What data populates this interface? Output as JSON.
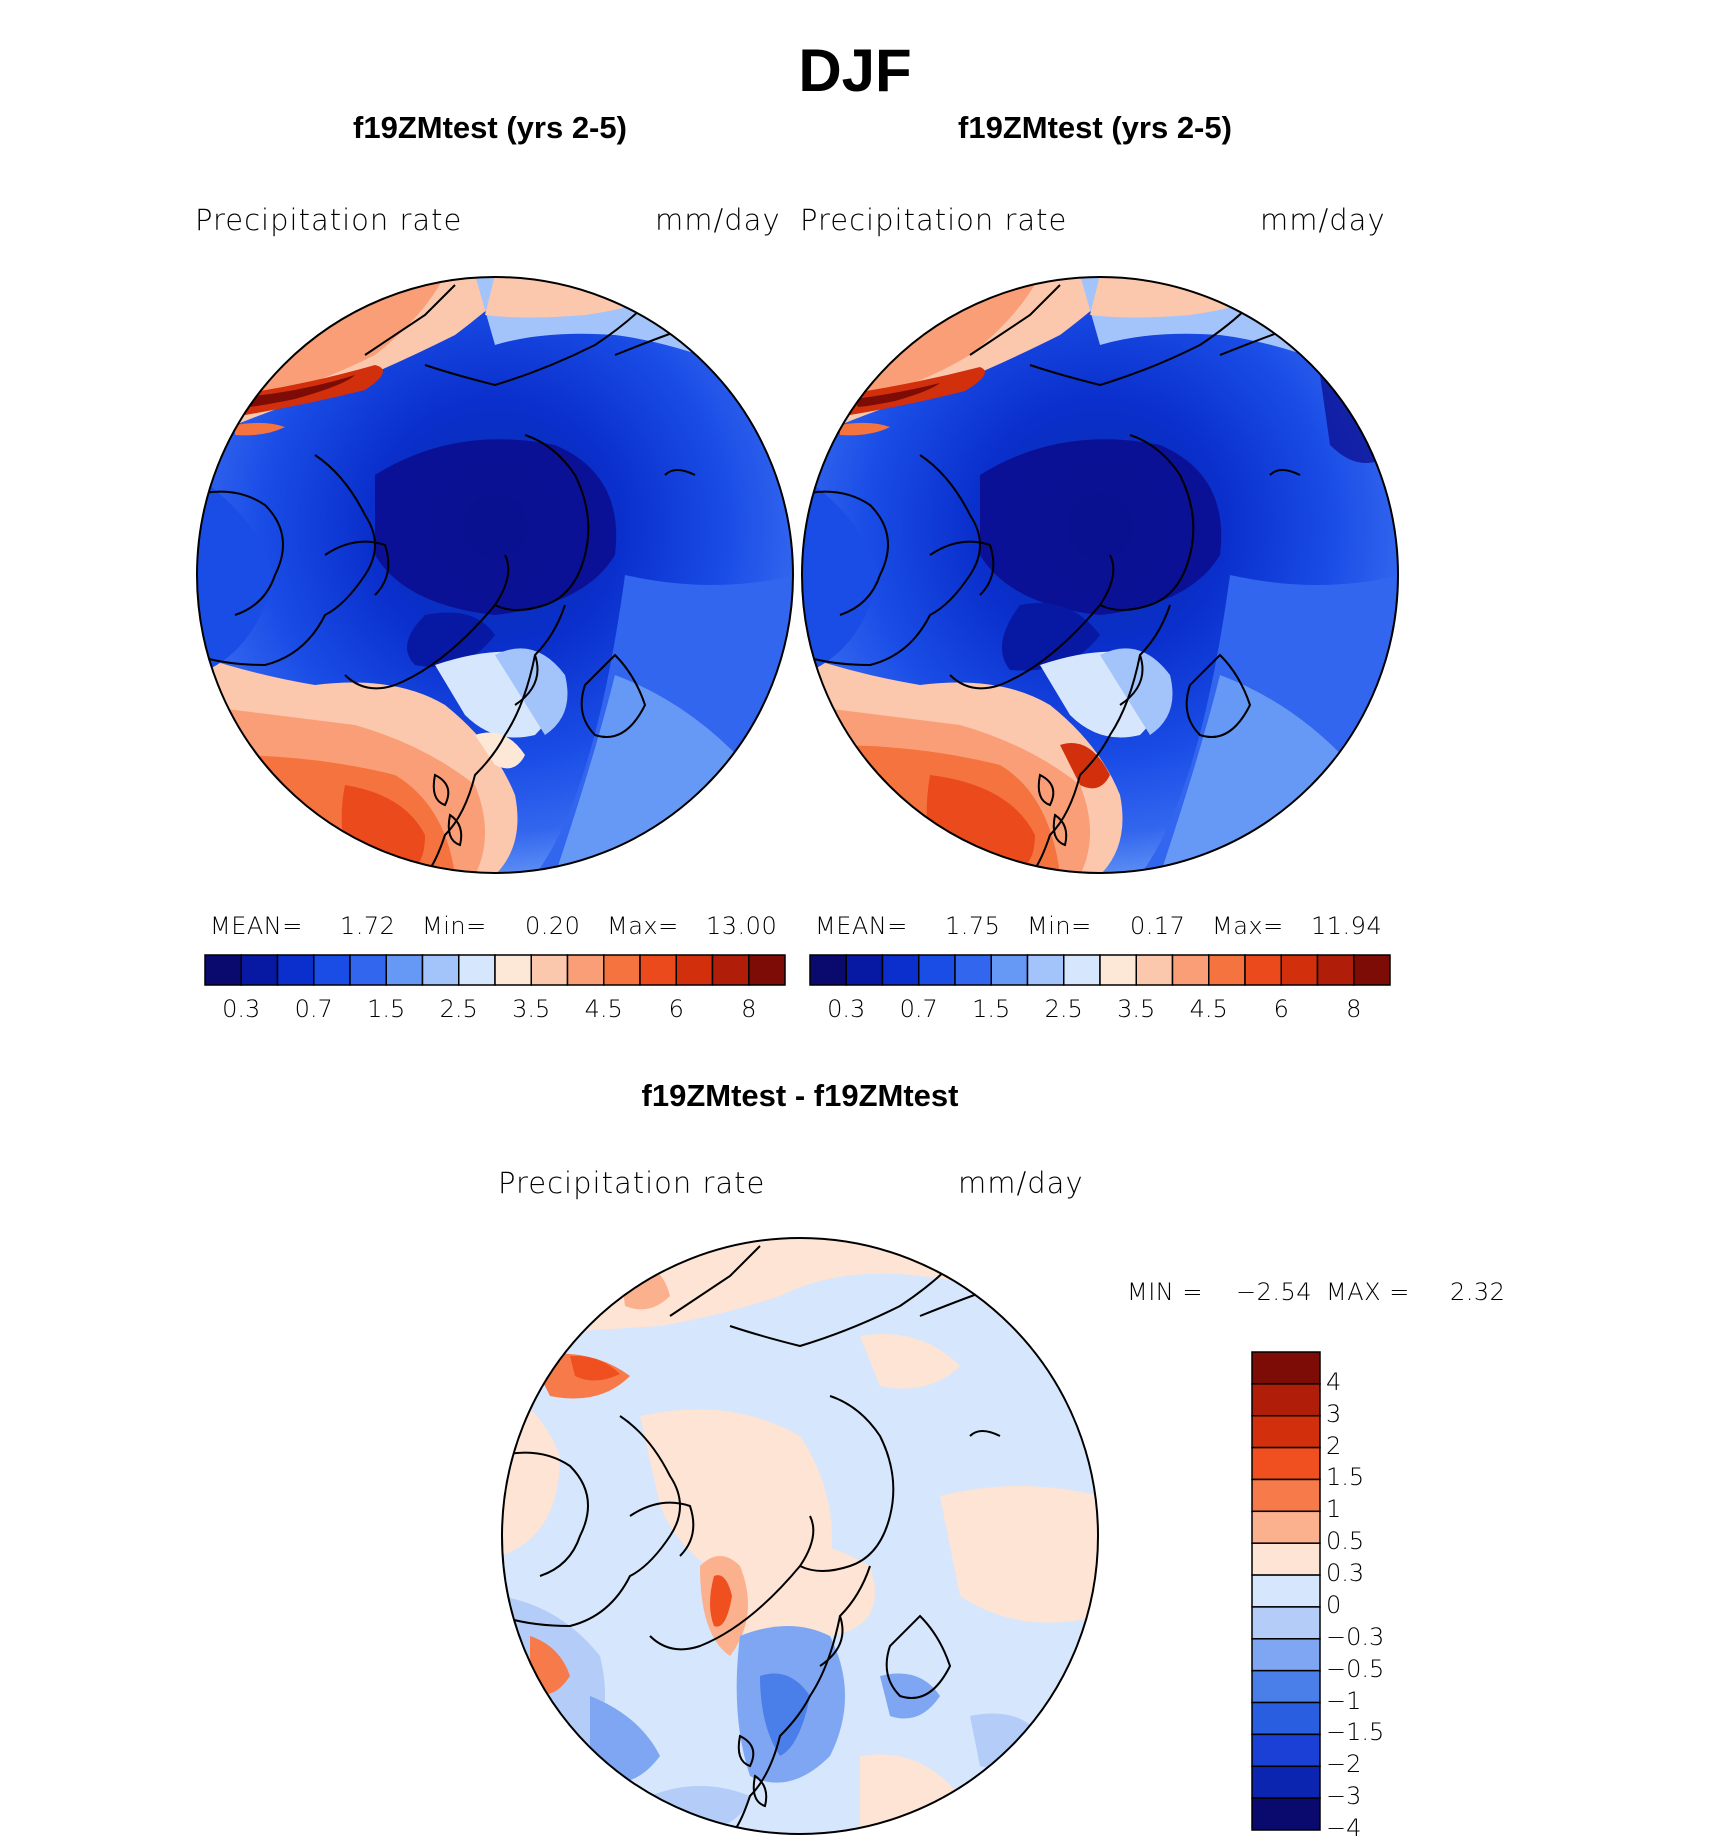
{
  "title": "DJF",
  "panels": [
    {
      "case_title": "f19ZMtest (yrs 2-5)",
      "left_label": "Precipitation  rate",
      "right_label": "mm/day",
      "stats": {
        "mean_label": "MEAN=",
        "mean": "1.72",
        "min_label": "Min=",
        "min": "0.20",
        "max_label": "Max=",
        "max": "13.00"
      }
    },
    {
      "case_title": "f19ZMtest (yrs 2-5)",
      "left_label": "Precipitation  rate",
      "right_label": "mm/day",
      "stats": {
        "mean_label": "MEAN=",
        "mean": "1.75",
        "min_label": "Min=",
        "min": "0.17",
        "max_label": "Max=",
        "max": "11.94"
      }
    }
  ],
  "diff_panel": {
    "case_title": "f19ZMtest - f19ZMtest",
    "left_label": "Precipitation  rate",
    "right_label": "mm/day",
    "min_label": "MIN  =",
    "min": "−2.54",
    "max_label": "MAX  =",
    "max": "2.32"
  },
  "colorbar_horizontal": {
    "colors": [
      "#0a0a6e",
      "#0719a3",
      "#0a2fcc",
      "#1a4de6",
      "#3366ee",
      "#6699f5",
      "#a3c4fa",
      "#d6e6fc",
      "#fde8d8",
      "#fcc8ad",
      "#f99e76",
      "#f5733f",
      "#ea4a1c",
      "#d22f0c",
      "#b01e09",
      "#7d0c06"
    ],
    "ticks": [
      "0.3",
      "0.7",
      "1.5",
      "2.5",
      "3.5",
      "4.5",
      "6",
      "8"
    ]
  },
  "colorbar_vertical": {
    "colors": [
      "#7d0c06",
      "#b01e09",
      "#d22f0c",
      "#f05020",
      "#f77a4a",
      "#fbb08e",
      "#fde4d4",
      "#d6e6fc",
      "#b3cdf8",
      "#7ea6f2",
      "#4a7ee8",
      "#2a5ee0",
      "#1a40d6",
      "#0b25b0",
      "#0a0a6e"
    ],
    "ticks": [
      "4",
      "3",
      "2",
      "1.5",
      "1",
      "0.5",
      "0.3",
      "0",
      "−0.3",
      "−0.5",
      "−1",
      "−1.5",
      "−2",
      "−3",
      "−4"
    ]
  }
}
